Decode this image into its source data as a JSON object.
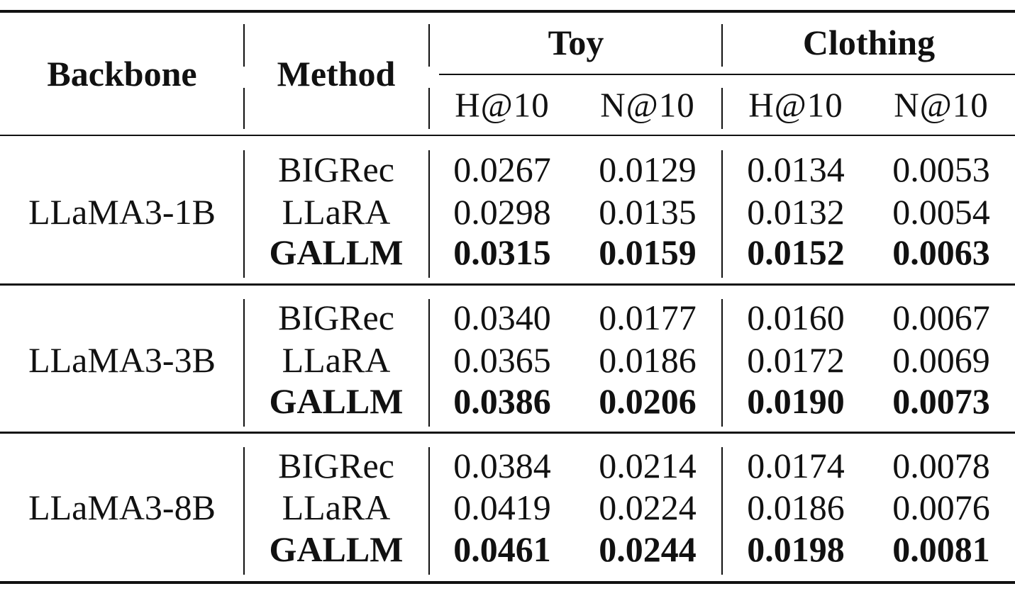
{
  "table": {
    "headers": {
      "backbone": "Backbone",
      "method": "Method",
      "groups": [
        "Toy",
        "Clothing"
      ],
      "metrics": [
        "H@10",
        "N@10",
        "H@10",
        "N@10"
      ]
    },
    "blocks": [
      {
        "backbone": "LLaMA3-1B",
        "rows": [
          {
            "method": "BIGRec",
            "values": [
              "0.0267",
              "0.0129",
              "0.0134",
              "0.0053"
            ],
            "best": false
          },
          {
            "method": "LLaRA",
            "values": [
              "0.0298",
              "0.0135",
              "0.0132",
              "0.0054"
            ],
            "best": false
          },
          {
            "method": "GALLM",
            "values": [
              "0.0315",
              "0.0159",
              "0.0152",
              "0.0063"
            ],
            "best": true
          }
        ]
      },
      {
        "backbone": "LLaMA3-3B",
        "rows": [
          {
            "method": "BIGRec",
            "values": [
              "0.0340",
              "0.0177",
              "0.0160",
              "0.0067"
            ],
            "best": false
          },
          {
            "method": "LLaRA",
            "values": [
              "0.0365",
              "0.0186",
              "0.0172",
              "0.0069"
            ],
            "best": false
          },
          {
            "method": "GALLM",
            "values": [
              "0.0386",
              "0.0206",
              "0.0190",
              "0.0073"
            ],
            "best": true
          }
        ]
      },
      {
        "backbone": "LLaMA3-8B",
        "rows": [
          {
            "method": "BIGRec",
            "values": [
              "0.0384",
              "0.0214",
              "0.0174",
              "0.0078"
            ],
            "best": false
          },
          {
            "method": "LLaRA",
            "values": [
              "0.0419",
              "0.0224",
              "0.0186",
              "0.0076"
            ],
            "best": false
          },
          {
            "method": "GALLM",
            "values": [
              "0.0461",
              "0.0244",
              "0.0198",
              "0.0081"
            ],
            "best": true
          }
        ]
      }
    ]
  }
}
